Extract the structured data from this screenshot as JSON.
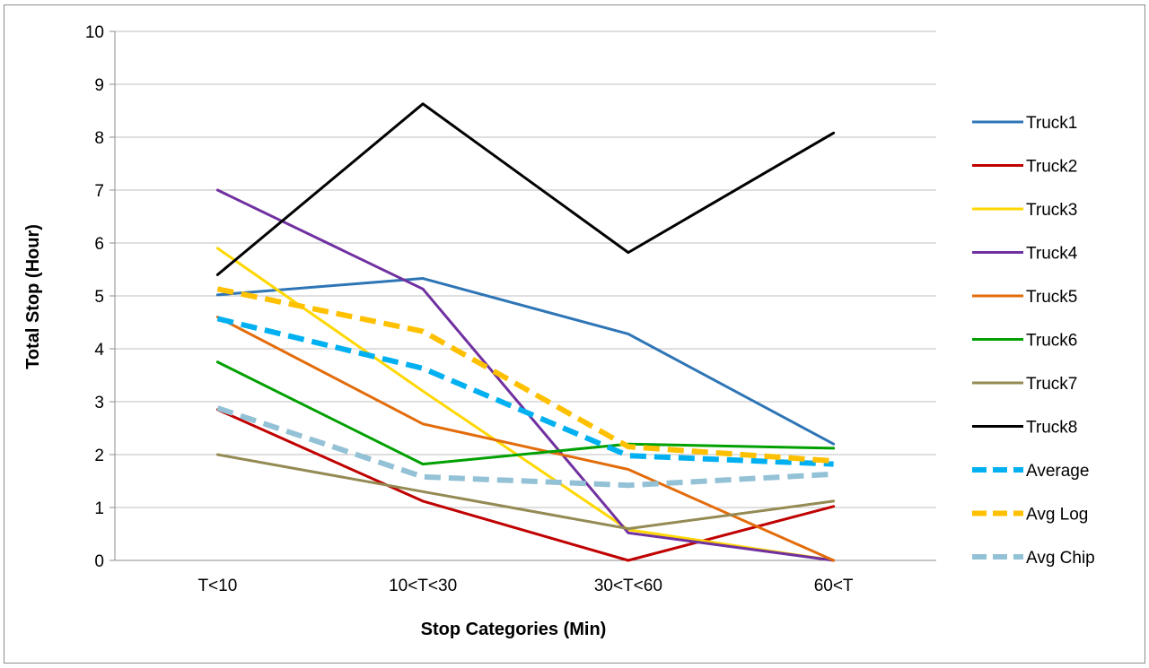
{
  "chart_data": {
    "type": "line",
    "title": "",
    "xlabel": "Stop Categories (Min)",
    "ylabel": "Total Stop (Hour)",
    "categories": [
      "T<10",
      "10<T<30",
      "30<T<60",
      "60<T"
    ],
    "ylim": [
      0,
      10
    ],
    "yticks": [
      0,
      1,
      2,
      3,
      4,
      5,
      6,
      7,
      8,
      9,
      10
    ],
    "grid": true,
    "legend_position": "right",
    "series": [
      {
        "name": "Truck1",
        "values": [
          5.02,
          5.33,
          4.28,
          2.2
        ],
        "color": "#2e75b6",
        "dashed": false
      },
      {
        "name": "Truck2",
        "values": [
          2.85,
          1.12,
          0.0,
          1.02
        ],
        "color": "#c00000",
        "dashed": false
      },
      {
        "name": "Truck3",
        "values": [
          5.9,
          3.2,
          0.58,
          0.0
        ],
        "color": "#ffd700",
        "dashed": false
      },
      {
        "name": "Truck4",
        "values": [
          7.0,
          5.13,
          0.52,
          0.0
        ],
        "color": "#7030a0",
        "dashed": false
      },
      {
        "name": "Truck5",
        "values": [
          4.6,
          2.58,
          1.72,
          0.0
        ],
        "color": "#e36c0a",
        "dashed": false
      },
      {
        "name": "Truck6",
        "values": [
          3.75,
          1.82,
          2.2,
          2.12
        ],
        "color": "#00a000",
        "dashed": false
      },
      {
        "name": "Truck7",
        "values": [
          2.0,
          1.3,
          0.6,
          1.12
        ],
        "color": "#948a54",
        "dashed": false
      },
      {
        "name": "Truck8",
        "values": [
          5.4,
          8.63,
          5.82,
          8.08
        ],
        "color": "#000000",
        "dashed": false
      },
      {
        "name": "Average",
        "values": [
          4.57,
          3.63,
          1.98,
          1.82
        ],
        "color": "#00b0f0",
        "dashed": true
      },
      {
        "name": "Avg Log",
        "values": [
          5.13,
          4.33,
          2.15,
          1.88
        ],
        "color": "#ffc000",
        "dashed": true
      },
      {
        "name": "Avg Chip",
        "values": [
          2.88,
          1.58,
          1.42,
          1.63
        ],
        "color": "#93c1d5",
        "dashed": true
      }
    ]
  }
}
